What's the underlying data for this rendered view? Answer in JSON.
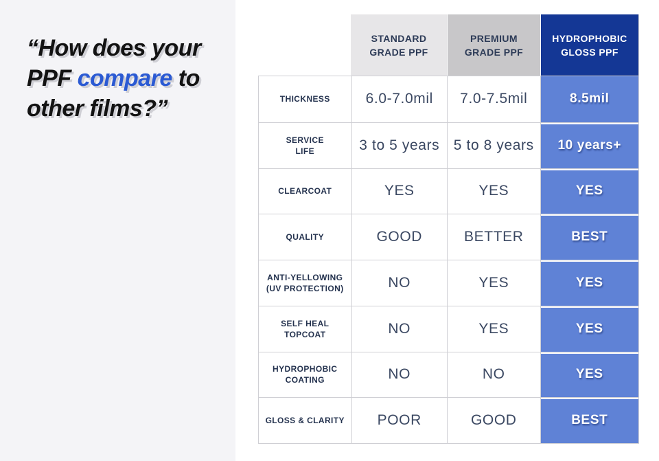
{
  "quote": {
    "line1": "“How does your",
    "line2_before": "PPF ",
    "line2_highlight": "compare",
    "line2_after": " to",
    "line3": "other films?”"
  },
  "table": {
    "columns": [
      {
        "id": "standard",
        "label": "STANDARD\nGRADE PPF"
      },
      {
        "id": "premium",
        "label": "PREMIUM\nGRADE PPF"
      },
      {
        "id": "hydrophobic",
        "label": "HYDROPHOBIC\nGLOSS PPF"
      }
    ],
    "rows": [
      {
        "label": "THICKNESS",
        "standard": "6.0-7.0mil",
        "premium": "7.0-7.5mil",
        "hydrophobic": "8.5mil"
      },
      {
        "label": "SERVICE\nLIFE",
        "standard": "3 to 5 years",
        "premium": "5 to 8 years",
        "hydrophobic": "10 years+"
      },
      {
        "label": "CLEARCOAT",
        "standard": "YES",
        "premium": "YES",
        "hydrophobic": "YES"
      },
      {
        "label": "QUALITY",
        "standard": "GOOD",
        "premium": "BETTER",
        "hydrophobic": "BEST"
      },
      {
        "label": "ANTI-YELLOWING\n(UV PROTECTION)",
        "standard": "NO",
        "premium": "YES",
        "hydrophobic": "YES"
      },
      {
        "label": "SELF HEAL\nTOPCOAT",
        "standard": "NO",
        "premium": "YES",
        "hydrophobic": "YES"
      },
      {
        "label": "HYDROPHOBIC\nCOATING",
        "standard": "NO",
        "premium": "NO",
        "hydrophobic": "YES"
      },
      {
        "label": "GLOSS & CLARITY",
        "standard": "POOR",
        "premium": "GOOD",
        "hydrophobic": "BEST"
      }
    ]
  },
  "colors": {
    "accent_blue": "#2b5ad3",
    "header_navy": "#143795",
    "cell_blue": "#5f82d6",
    "header_gray_light": "#e7e6e8",
    "header_gray_mid": "#c8c7c9",
    "value_text": "#3b4862",
    "label_text": "#25334f",
    "left_panel_bg": "#f4f4f7",
    "table_border": "#cfcfd4"
  }
}
